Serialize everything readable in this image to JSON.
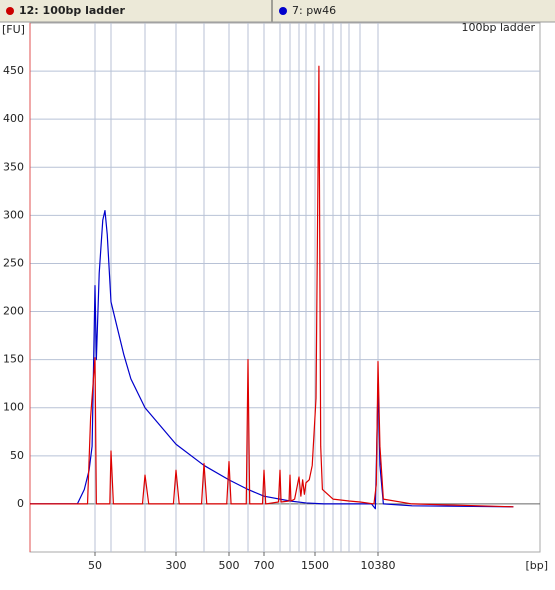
{
  "tabs": [
    {
      "label": "12: 100bp ladder",
      "color": "#cc0000"
    },
    {
      "label": "7: pw46",
      "color": "#0000cc"
    }
  ],
  "chart_data": {
    "type": "line",
    "ylabel": "[FU]",
    "xlabel": "[bp]",
    "xlim": [
      20,
      60000
    ],
    "ylim": [
      -50,
      500
    ],
    "xticks": [
      50,
      300,
      500,
      700,
      1500,
      10380
    ],
    "xgrid": [
      50,
      100,
      200,
      300,
      400,
      500,
      600,
      700,
      800,
      900,
      1000,
      1200,
      1500,
      2000,
      2500,
      3000,
      4000,
      7000,
      10380
    ],
    "yticks": [
      0,
      50,
      100,
      150,
      200,
      250,
      300,
      350,
      400,
      450
    ],
    "grid": true,
    "series": [
      {
        "name": "100bp ladder",
        "color": "#dd0000",
        "x": [
          20,
          45,
          47,
          50,
          53,
          95,
          100,
          105,
          190,
          200,
          210,
          290,
          300,
          310,
          390,
          400,
          410,
          490,
          500,
          510,
          590,
          600,
          610,
          690,
          700,
          710,
          790,
          800,
          810,
          890,
          900,
          910,
          950,
          1000,
          1050,
          1100,
          1150,
          1200,
          1300,
          1400,
          1550,
          1700,
          1800,
          1900,
          2500,
          4000,
          7000,
          9500,
          10000,
          10380,
          10600,
          11000,
          15000,
          45000
        ],
        "values": [
          0,
          0,
          90,
          152,
          0,
          0,
          55,
          0,
          0,
          30,
          0,
          0,
          35,
          0,
          0,
          42,
          0,
          0,
          44,
          0,
          0,
          150,
          0,
          0,
          35,
          0,
          2,
          35,
          2,
          3,
          30,
          3,
          5,
          28,
          8,
          25,
          10,
          22,
          25,
          40,
          110,
          455,
          60,
          15,
          5,
          3,
          2,
          0,
          20,
          148,
          60,
          5,
          0,
          -3
        ]
      },
      {
        "color": "#0000cc",
        "x": [
          20,
          39,
          43,
          46,
          48,
          50,
          53,
          60,
          70,
          77,
          85,
          100,
          130,
          150,
          200,
          300,
          400,
          500,
          600,
          700,
          900,
          1200,
          2000,
          5000,
          9000,
          9800,
          10100,
          10380,
          10600,
          11000,
          15000,
          45000
        ],
        "values": [
          0,
          0,
          15,
          35,
          60,
          227,
          150,
          240,
          295,
          305,
          280,
          210,
          155,
          130,
          100,
          62,
          40,
          25,
          15,
          8,
          3,
          1,
          0,
          0,
          0,
          -5,
          60,
          125,
          40,
          0,
          -2,
          -3
        ]
      }
    ]
  }
}
